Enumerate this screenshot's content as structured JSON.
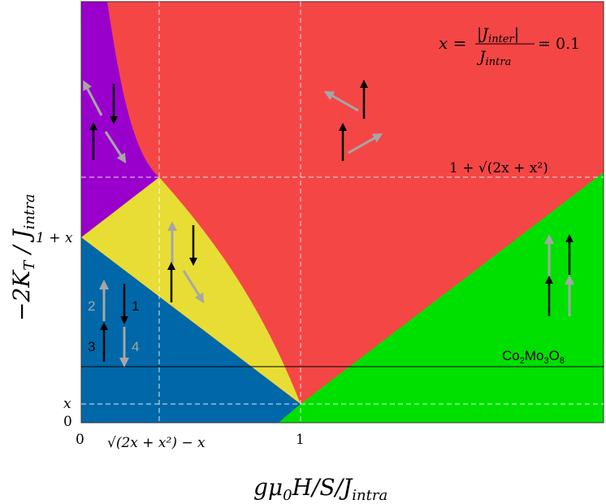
{
  "colors": {
    "red_phase": "#f54646",
    "purple_phase": "#9900cc",
    "yellow_phase": "#e8dd35",
    "blue_phase": "#0068a8",
    "green_phase": "#00e000",
    "black_spin": "#000000",
    "gray_spin": "#a6a6a6"
  },
  "axes": {
    "ylabel_main": "−2K",
    "ylabel_sub": "T",
    "ylabel_slash": " / J",
    "ylabel_sub2": "intra",
    "xlabel_main": "gμ",
    "xlabel_sub0": "0",
    "xlabel_rest": "H/S/J",
    "xlabel_sub": "intra"
  },
  "y_ticks": {
    "zero": "0",
    "x": "x",
    "one_plus_x": "1 + x",
    "upper": "1 + √(2x + x²)"
  },
  "x_ticks": {
    "zero": "0",
    "one": "1",
    "sqrt": "√(2x + x²) − x"
  },
  "annotations": {
    "formula_lhs": "x =",
    "formula_num": "|J",
    "formula_num_sub": "inter",
    "formula_num_end": "|",
    "formula_den": "J",
    "formula_den_sub": "intra",
    "formula_rhs": "= 0.1",
    "material": "Co",
    "material_sub1": "2",
    "material_mid": "Mo",
    "material_sub2": "3",
    "material_end": "O",
    "material_sub3": "8"
  },
  "spin_labels": {
    "s1": "1",
    "s2": "2",
    "s3": "3",
    "s4": "4"
  }
}
